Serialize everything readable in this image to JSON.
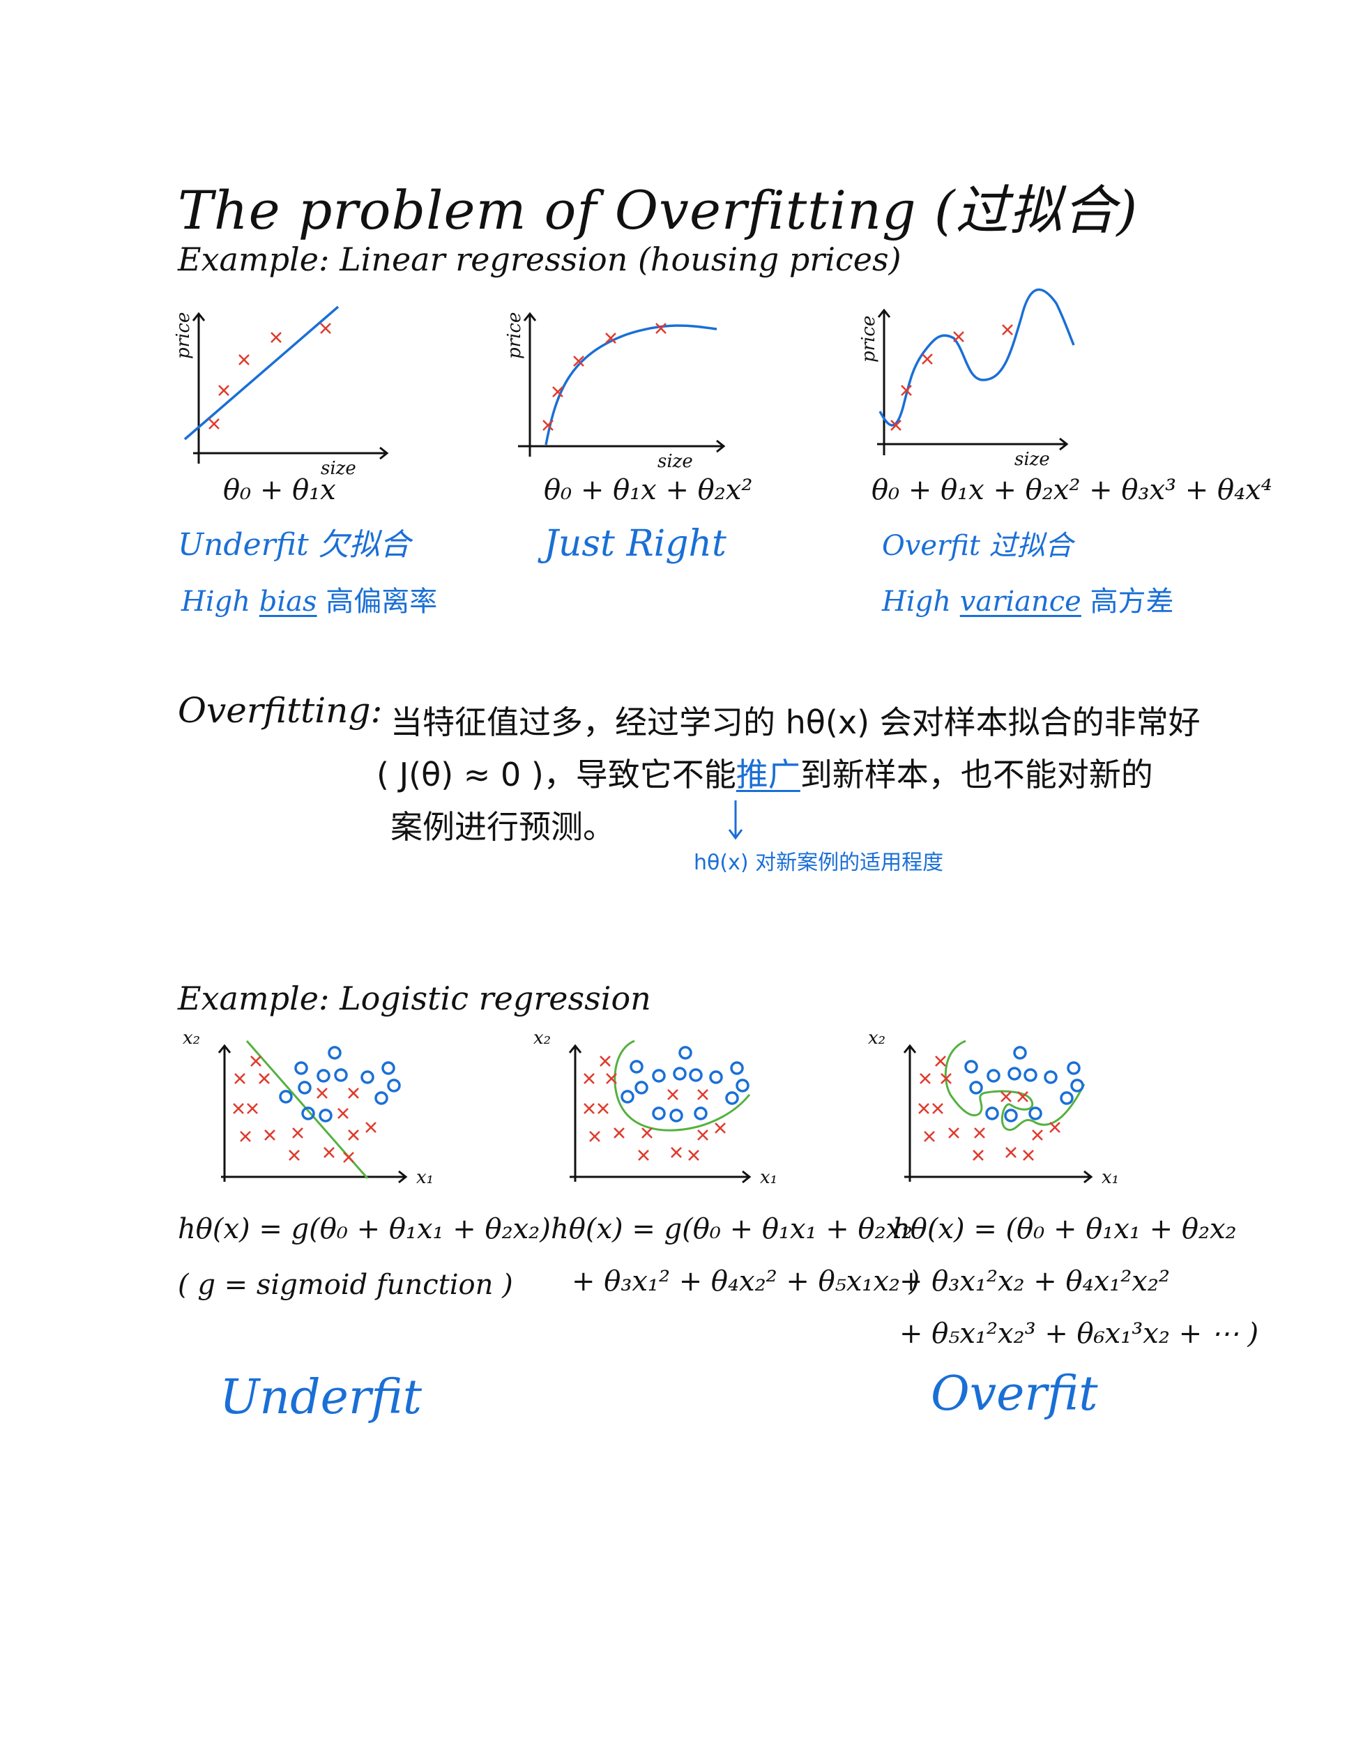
{
  "title": "The problem of Overfitting (过拟合)",
  "linear_section": {
    "heading": "Example: Linear regression (housing prices)",
    "ylabel": "price",
    "xlabel": "size",
    "plots": [
      {
        "formula": "θ₀ + θ₁x",
        "fit_label": "Underfit 欠拟合",
        "bias_pre": "High",
        "bias_term": "bias",
        "bias_cn": "高偏离率"
      },
      {
        "formula": "θ₀ + θ₁x + θ₂x²",
        "fit_label": "Just Right"
      },
      {
        "formula": "θ₀ + θ₁x + θ₂x² + θ₃x³ + θ₄x⁴",
        "fit_label": "Overfit 过拟合",
        "var_pre": "High",
        "var_term": "variance",
        "var_cn": "高方差"
      }
    ]
  },
  "definition": {
    "label": "Overfitting:",
    "line1": "当特征值过多，经过学习的 hθ(x) 会对样本拟合的非常好",
    "line2_a": "( J(θ) ≈ 0 )，导致它不能",
    "line2_key": "推广",
    "line2_b": "到新样本，也不能对新的",
    "line3": "案例进行预测。",
    "note": "hθ(x) 对新案例的适用程度"
  },
  "logistic_section": {
    "heading": "Example: Logistic regression",
    "xlabel": "x₁",
    "ylabel": "x₂",
    "plots": [
      {
        "formula_1": "hθ(x) = g(θ₀ + θ₁x₁ + θ₂x₂)",
        "formula_2": "( g = sigmoid function )"
      },
      {
        "formula_1": "hθ(x) = g(θ₀ + θ₁x₁ + θ₂x₂",
        "formula_2": "+ θ₃x₁² + θ₄x₂² + θ₅x₁x₂ )"
      },
      {
        "formula_1": "hθ(x) = (θ₀ + θ₁x₁ + θ₂x₂",
        "formula_2": "+ θ₃x₁²x₂ + θ₄x₁²x₂²",
        "formula_3": "+ θ₅x₁²x₂³ + θ₆x₁³x₂ + ⋯ )"
      }
    ],
    "left_caption": "Underfit",
    "right_caption": "Overfit"
  },
  "colors": {
    "ink": "#111111",
    "note_blue": "#1a6fd6",
    "cross_red": "#e03b2e",
    "boundary_green": "#55b13f"
  },
  "chart_data": [
    {
      "type": "scatter",
      "points": [
        [
          1.6,
          1.0
        ],
        [
          2.4,
          3.4
        ],
        [
          3.6,
          5.3
        ],
        [
          5.5,
          6.2
        ],
        [
          8.4,
          6.6
        ]
      ],
      "line": "linear fit"
    },
    {
      "type": "scatter",
      "points": [
        [
          1.6,
          1.0
        ],
        [
          2.4,
          3.4
        ],
        [
          3.6,
          5.3
        ],
        [
          5.5,
          6.2
        ],
        [
          8.4,
          6.6
        ]
      ],
      "line": "quadratic fit"
    },
    {
      "type": "scatter",
      "points": [
        [
          1.6,
          1.0
        ],
        [
          2.4,
          3.4
        ],
        [
          3.6,
          5.3
        ],
        [
          5.5,
          6.2
        ],
        [
          8.4,
          6.6
        ]
      ],
      "line": "quartic fit"
    }
  ]
}
